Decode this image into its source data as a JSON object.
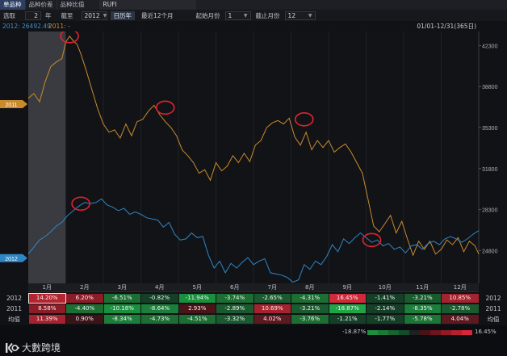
{
  "tabs": [
    "单品种",
    "品种价差",
    "品种比值"
  ],
  "symbol": "RUFI",
  "controls": {
    "select_label": "选取",
    "count": "2",
    "year_unit": "年",
    "to_label": "截至",
    "end_year": "2012",
    "calendar_year": "日历年",
    "recent_12": "最近12个月",
    "start_month_label": "起始月份",
    "start_month": "1",
    "end_month_label": "截止月份",
    "end_month": "12"
  },
  "legend_info": {
    "s2012": "2012: 26492.49",
    "s2011": "2011: -"
  },
  "date_range": "01/01-12/31(365日)",
  "chart_data": {
    "type": "line",
    "x_label": "month",
    "months": [
      "1月",
      "2月",
      "3月",
      "4月",
      "5月",
      "6月",
      "7月",
      "8月",
      "9月",
      "10月",
      "11月",
      "12月"
    ],
    "ylim": [
      22000,
      43500
    ],
    "yticks": [
      "42300",
      "38800",
      "35300",
      "31800",
      "28300",
      "24800"
    ],
    "ytick_values": [
      42300,
      38800,
      35300,
      31800,
      28300,
      24800
    ],
    "series": [
      {
        "name": "2011",
        "color": "#c98a2c",
        "x": [
          0.0,
          0.15,
          0.3,
          0.45,
          0.6,
          0.75,
          0.9,
          1.0,
          1.1,
          1.2,
          1.3,
          1.4,
          1.55,
          1.7,
          1.85,
          2.0,
          2.15,
          2.3,
          2.45,
          2.6,
          2.75,
          2.9,
          3.05,
          3.2,
          3.35,
          3.5,
          3.65,
          3.8,
          3.95,
          4.1,
          4.25,
          4.4,
          4.55,
          4.7,
          4.85,
          5.0,
          5.15,
          5.3,
          5.45,
          5.6,
          5.75,
          5.9,
          6.05,
          6.2,
          6.35,
          6.5,
          6.65,
          6.8,
          6.95,
          7.1,
          7.25,
          7.4,
          7.55,
          7.7,
          7.85,
          8.0,
          8.15,
          8.3,
          8.45,
          8.6,
          8.75,
          8.9,
          9.05,
          9.2,
          9.35,
          9.5,
          9.65,
          9.8,
          9.95,
          10.1,
          10.25,
          10.4,
          10.55,
          10.7,
          10.85,
          11.0,
          11.15,
          11.3,
          11.45,
          11.6,
          11.75,
          11.9,
          12.0
        ],
        "values": [
          37800,
          38200,
          37500,
          39200,
          40500,
          40900,
          41200,
          42600,
          43100,
          42700,
          42400,
          41600,
          40100,
          38500,
          36900,
          35600,
          34900,
          35100,
          34400,
          35600,
          34600,
          35800,
          36000,
          36700,
          37200,
          36400,
          35800,
          35300,
          34600,
          33400,
          32900,
          32300,
          31400,
          31700,
          30800,
          32300,
          31600,
          32000,
          32900,
          32300,
          33100,
          32400,
          33800,
          34200,
          35300,
          35700,
          35900,
          35600,
          36100,
          34500,
          33800,
          34900,
          33400,
          34200,
          33600,
          34200,
          33200,
          33600,
          33900,
          33200,
          32300,
          31400,
          29200,
          26900,
          26400,
          27100,
          27800,
          26300,
          27300,
          25800,
          24400,
          25600,
          24900,
          25600,
          24500,
          24900,
          25700,
          25300,
          25900,
          24700,
          25600,
          25200,
          24500
        ]
      },
      {
        "name": "2012",
        "color": "#2f86c4",
        "x": [
          0.0,
          0.15,
          0.3,
          0.45,
          0.6,
          0.75,
          0.9,
          1.05,
          1.2,
          1.35,
          1.5,
          1.65,
          1.8,
          1.95,
          2.1,
          2.25,
          2.4,
          2.55,
          2.7,
          2.85,
          3.0,
          3.15,
          3.3,
          3.45,
          3.6,
          3.75,
          3.9,
          4.05,
          4.2,
          4.35,
          4.5,
          4.65,
          4.8,
          4.95,
          5.1,
          5.25,
          5.4,
          5.55,
          5.7,
          5.85,
          6.0,
          6.15,
          6.3,
          6.45,
          6.6,
          6.75,
          6.9,
          7.05,
          7.2,
          7.35,
          7.5,
          7.65,
          7.8,
          7.95,
          8.1,
          8.25,
          8.4,
          8.55,
          8.7,
          8.85,
          9.0,
          9.15,
          9.3,
          9.45,
          9.6,
          9.75,
          9.9,
          10.05,
          10.2,
          10.35,
          10.5,
          10.65,
          10.8,
          10.95,
          11.1,
          11.25,
          11.4,
          11.55,
          11.7,
          11.85,
          12.0
        ],
        "values": [
          24500,
          25100,
          25700,
          26000,
          26400,
          26900,
          27200,
          27800,
          28200,
          28600,
          28900,
          28800,
          28900,
          29200,
          28700,
          28500,
          28200,
          28400,
          27900,
          28100,
          27900,
          27600,
          27500,
          27400,
          26800,
          27200,
          26200,
          25700,
          25800,
          26300,
          25900,
          26000,
          24400,
          23300,
          23900,
          22900,
          23700,
          23300,
          23800,
          24200,
          23600,
          23900,
          24100,
          22900,
          22800,
          22700,
          22500,
          22100,
          22300,
          23600,
          23200,
          23900,
          23600,
          24300,
          25300,
          24700,
          25800,
          25400,
          25900,
          26300,
          25900,
          25500,
          25700,
          25200,
          25400,
          24900,
          25100,
          24600,
          25200,
          25300,
          24900,
          25400,
          25600,
          25300,
          25800,
          26000,
          25800,
          25500,
          25800,
          26200,
          26500
        ]
      }
    ],
    "left_markers": [
      {
        "label": "2011",
        "value": 37300,
        "color": "#c98a2c"
      },
      {
        "label": "2012",
        "value": 24150,
        "color": "#2f86c4"
      }
    ],
    "highlight_range": [
      0.0,
      1.0
    ],
    "annotation_circles": [
      {
        "series": "2011",
        "x": 1.1,
        "y": 43100
      },
      {
        "series": "2011",
        "x": 3.65,
        "y": 37000
      },
      {
        "series": "2011",
        "x": 7.35,
        "y": 36000
      },
      {
        "series": "2012",
        "x": 1.4,
        "y": 28800
      },
      {
        "series": "2012",
        "x": 9.15,
        "y": 25700
      }
    ]
  },
  "table": {
    "rows": [
      {
        "label": "2012",
        "values": [
          "14.20%",
          "6.20%",
          "-6.51%",
          "-0.82%",
          "-11.94%",
          "-3.74%",
          "-2.65%",
          "-4.31%",
          "16.45%",
          "-1.41%",
          "-3.21%",
          "10.85%"
        ],
        "colors": [
          "#b42530",
          "#8c1d28",
          "#1c6e33",
          "#163f28",
          "#19903e",
          "#1c6e33",
          "#1a5a2f",
          "#1c6e33",
          "#d0293a",
          "#163f28",
          "#1a5a2f",
          "#a5222e"
        ]
      },
      {
        "label": "2011",
        "values": [
          "8.58%",
          "-4.40%",
          "-10.18%",
          "-8.64%",
          "2.93%",
          "-2.89%",
          "10.69%",
          "-3.21%",
          "-18.87%",
          "-2.14%",
          "-8.35%",
          "-2.78%"
        ],
        "colors": [
          "#8c1d28",
          "#1c6e33",
          "#19903e",
          "#1a7f3a",
          "#4a1418",
          "#1a5a2f",
          "#a5222e",
          "#1a5a2f",
          "#1ea546",
          "#163f28",
          "#1a7f3a",
          "#1a5a2f"
        ]
      },
      {
        "label": "均值",
        "values": [
          "11.39%",
          "0.90%",
          "-8.34%",
          "-4.73%",
          "-4.51%",
          "-3.32%",
          "4.02%",
          "-3.76%",
          "-1.21%",
          "-1.77%",
          "-5.78%",
          "4.04%"
        ],
        "colors": [
          "#a5222e",
          "#3a1417",
          "#1a7f3a",
          "#1c6e33",
          "#1c6e33",
          "#1a5a2f",
          "#5c1a20",
          "#1c6e33",
          "#163f28",
          "#163f28",
          "#1b7535",
          "#5c1a20"
        ]
      }
    ],
    "selected_cell": {
      "row": 0,
      "col": 0
    }
  },
  "color_scale": {
    "min": "-18.87%",
    "max": "16.45%",
    "colors": [
      "#1e8f41",
      "#1a7a38",
      "#176331",
      "#144c29",
      "#1f2024",
      "#4a1217",
      "#6d141d",
      "#911a25",
      "#b6202d",
      "#d9273a"
    ]
  },
  "brand": "大數跨境"
}
